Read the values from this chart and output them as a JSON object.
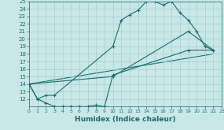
{
  "xlabel": "Humidex (Indice chaleur)",
  "xlim": [
    0,
    23
  ],
  "ylim": [
    11,
    25
  ],
  "yticks": [
    12,
    13,
    14,
    15,
    16,
    17,
    18,
    19,
    20,
    21,
    22,
    23,
    24,
    25
  ],
  "xticks": [
    0,
    1,
    2,
    3,
    4,
    5,
    6,
    7,
    8,
    9,
    10,
    11,
    12,
    13,
    14,
    15,
    16,
    17,
    18,
    19,
    20,
    21,
    22,
    23
  ],
  "bg_color": "#c8e8e8",
  "line_color": "#1a6b6b",
  "grid_color": "#a8cccc",
  "line1_x": [
    0,
    1,
    2,
    3,
    10,
    11,
    12,
    13,
    14,
    15,
    16,
    17,
    18,
    19,
    20,
    21,
    22
  ],
  "line1_y": [
    14,
    12,
    12.5,
    12.5,
    19,
    22.5,
    23.2,
    23.8,
    25,
    25,
    24.5,
    25,
    23.5,
    22.5,
    21,
    19,
    18.5
  ],
  "line2_x": [
    0,
    10,
    19,
    22
  ],
  "line2_y": [
    14,
    15,
    21,
    18.5
  ],
  "line3_x": [
    0,
    1,
    2,
    3,
    4,
    5,
    6,
    7,
    8,
    9,
    10,
    19,
    22
  ],
  "line3_y": [
    14,
    12,
    11.5,
    11,
    11,
    11,
    11,
    11,
    11.2,
    11,
    15.2,
    18.5,
    18.5
  ],
  "line4_x": [
    0,
    22
  ],
  "line4_y": [
    14,
    18
  ]
}
